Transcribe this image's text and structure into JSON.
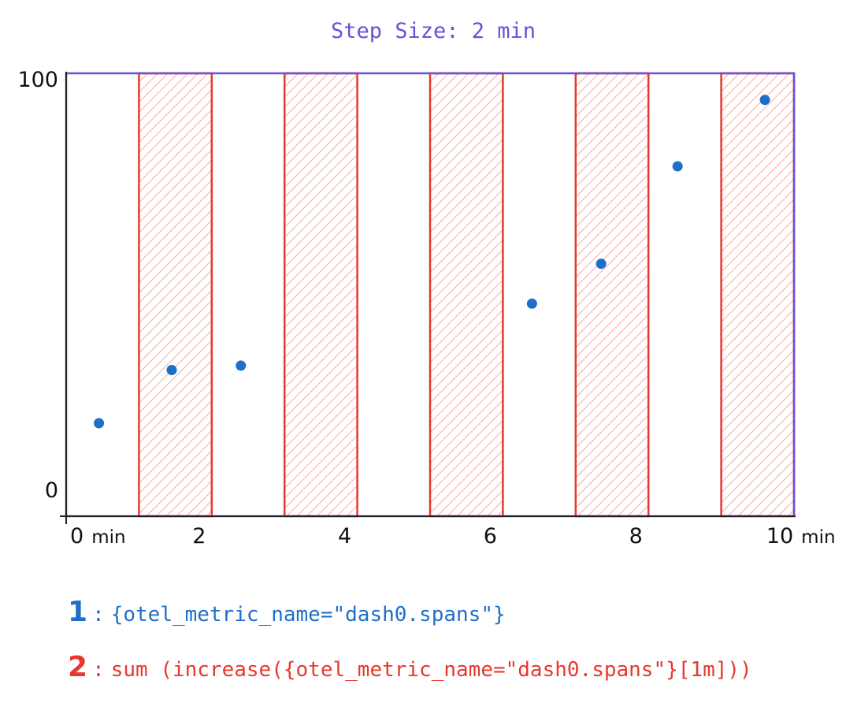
{
  "colors": {
    "axis": "#6b4fd8",
    "window_stroke": "#e8382e",
    "window_hatch": "#f7a8a4",
    "point": "#1e6fc8",
    "tick_text": "#111111",
    "query1": "#1e6fc8",
    "query2": "#e8382e"
  },
  "chart_data": {
    "type": "scatter",
    "title": "Step Size: 2 min",
    "xlim": [
      0,
      10
    ],
    "ylim": [
      0,
      100
    ],
    "x_ticks": [
      {
        "value": 0,
        "label": "0",
        "unit": "min"
      },
      {
        "value": 2,
        "label": "2"
      },
      {
        "value": 4,
        "label": "4"
      },
      {
        "value": 6,
        "label": "6"
      },
      {
        "value": 8,
        "label": "8"
      },
      {
        "value": 10,
        "label": "10",
        "unit": "min"
      }
    ],
    "y_ticks": [
      {
        "value": 0,
        "label": "0"
      },
      {
        "value": 100,
        "label": "100"
      }
    ],
    "windows": [
      [
        1,
        2
      ],
      [
        3,
        4
      ],
      [
        5,
        6
      ],
      [
        7,
        8
      ],
      [
        9,
        10
      ]
    ],
    "points": [
      {
        "x": 0.45,
        "y": 21
      },
      {
        "x": 1.45,
        "y": 33
      },
      {
        "x": 2.4,
        "y": 34
      },
      {
        "x": 6.4,
        "y": 48
      },
      {
        "x": 7.35,
        "y": 57
      },
      {
        "x": 8.4,
        "y": 79
      },
      {
        "x": 9.6,
        "y": 94
      }
    ],
    "grid": false
  },
  "legend": [
    {
      "number": "1",
      "colon": ":",
      "expression": "{otel_metric_name=\"dash0.spans\"}"
    },
    {
      "number": "2",
      "colon": ":",
      "expression": "sum (increase({otel_metric_name=\"dash0.spans\"}[1m]))"
    }
  ]
}
